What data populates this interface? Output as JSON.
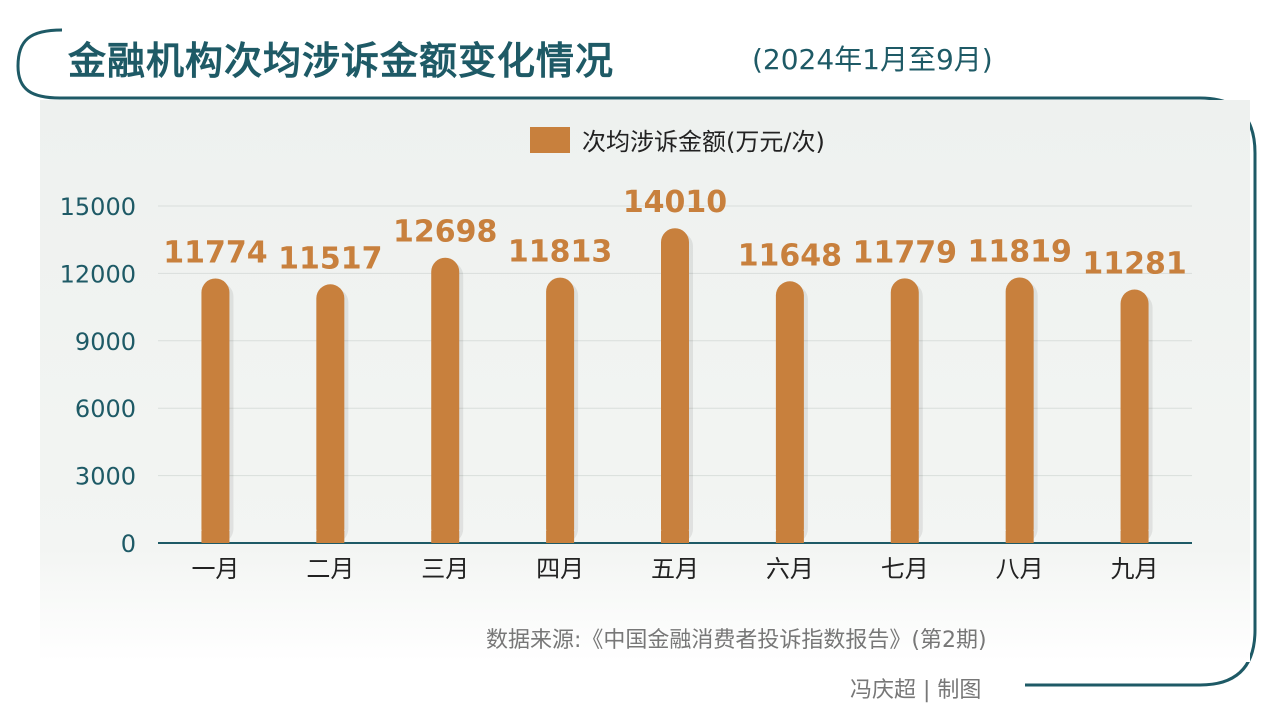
{
  "header": {
    "title": "金融机构次均涉诉金额变化情况",
    "subtitle": "(2024年1月至9月)"
  },
  "legend": {
    "label": "次均涉诉金额(万元/次)"
  },
  "footer": {
    "source": "数据来源:《中国金融消费者投诉指数报告》(第2期)",
    "credit": "冯庆超 | 制图"
  },
  "colors": {
    "bar": "#c8803d",
    "label": "#c8803d",
    "frame": "#1e5a66",
    "grid": "#d9dedb"
  },
  "chart_data": {
    "type": "bar",
    "title": "金融机构次均涉诉金额变化情况(2024年1月至9月)",
    "xlabel": "",
    "ylabel": "",
    "categories": [
      "一月",
      "二月",
      "三月",
      "四月",
      "五月",
      "六月",
      "七月",
      "八月",
      "九月"
    ],
    "series": [
      {
        "name": "次均涉诉金额(万元/次)",
        "values": [
          11774,
          11517,
          12698,
          11813,
          14010,
          11648,
          11779,
          11819,
          11281
        ]
      }
    ],
    "ylim": [
      0,
      15000
    ],
    "yticks": [
      0,
      3000,
      6000,
      9000,
      12000,
      15000
    ],
    "grid": true,
    "legend_position": "top-center"
  }
}
